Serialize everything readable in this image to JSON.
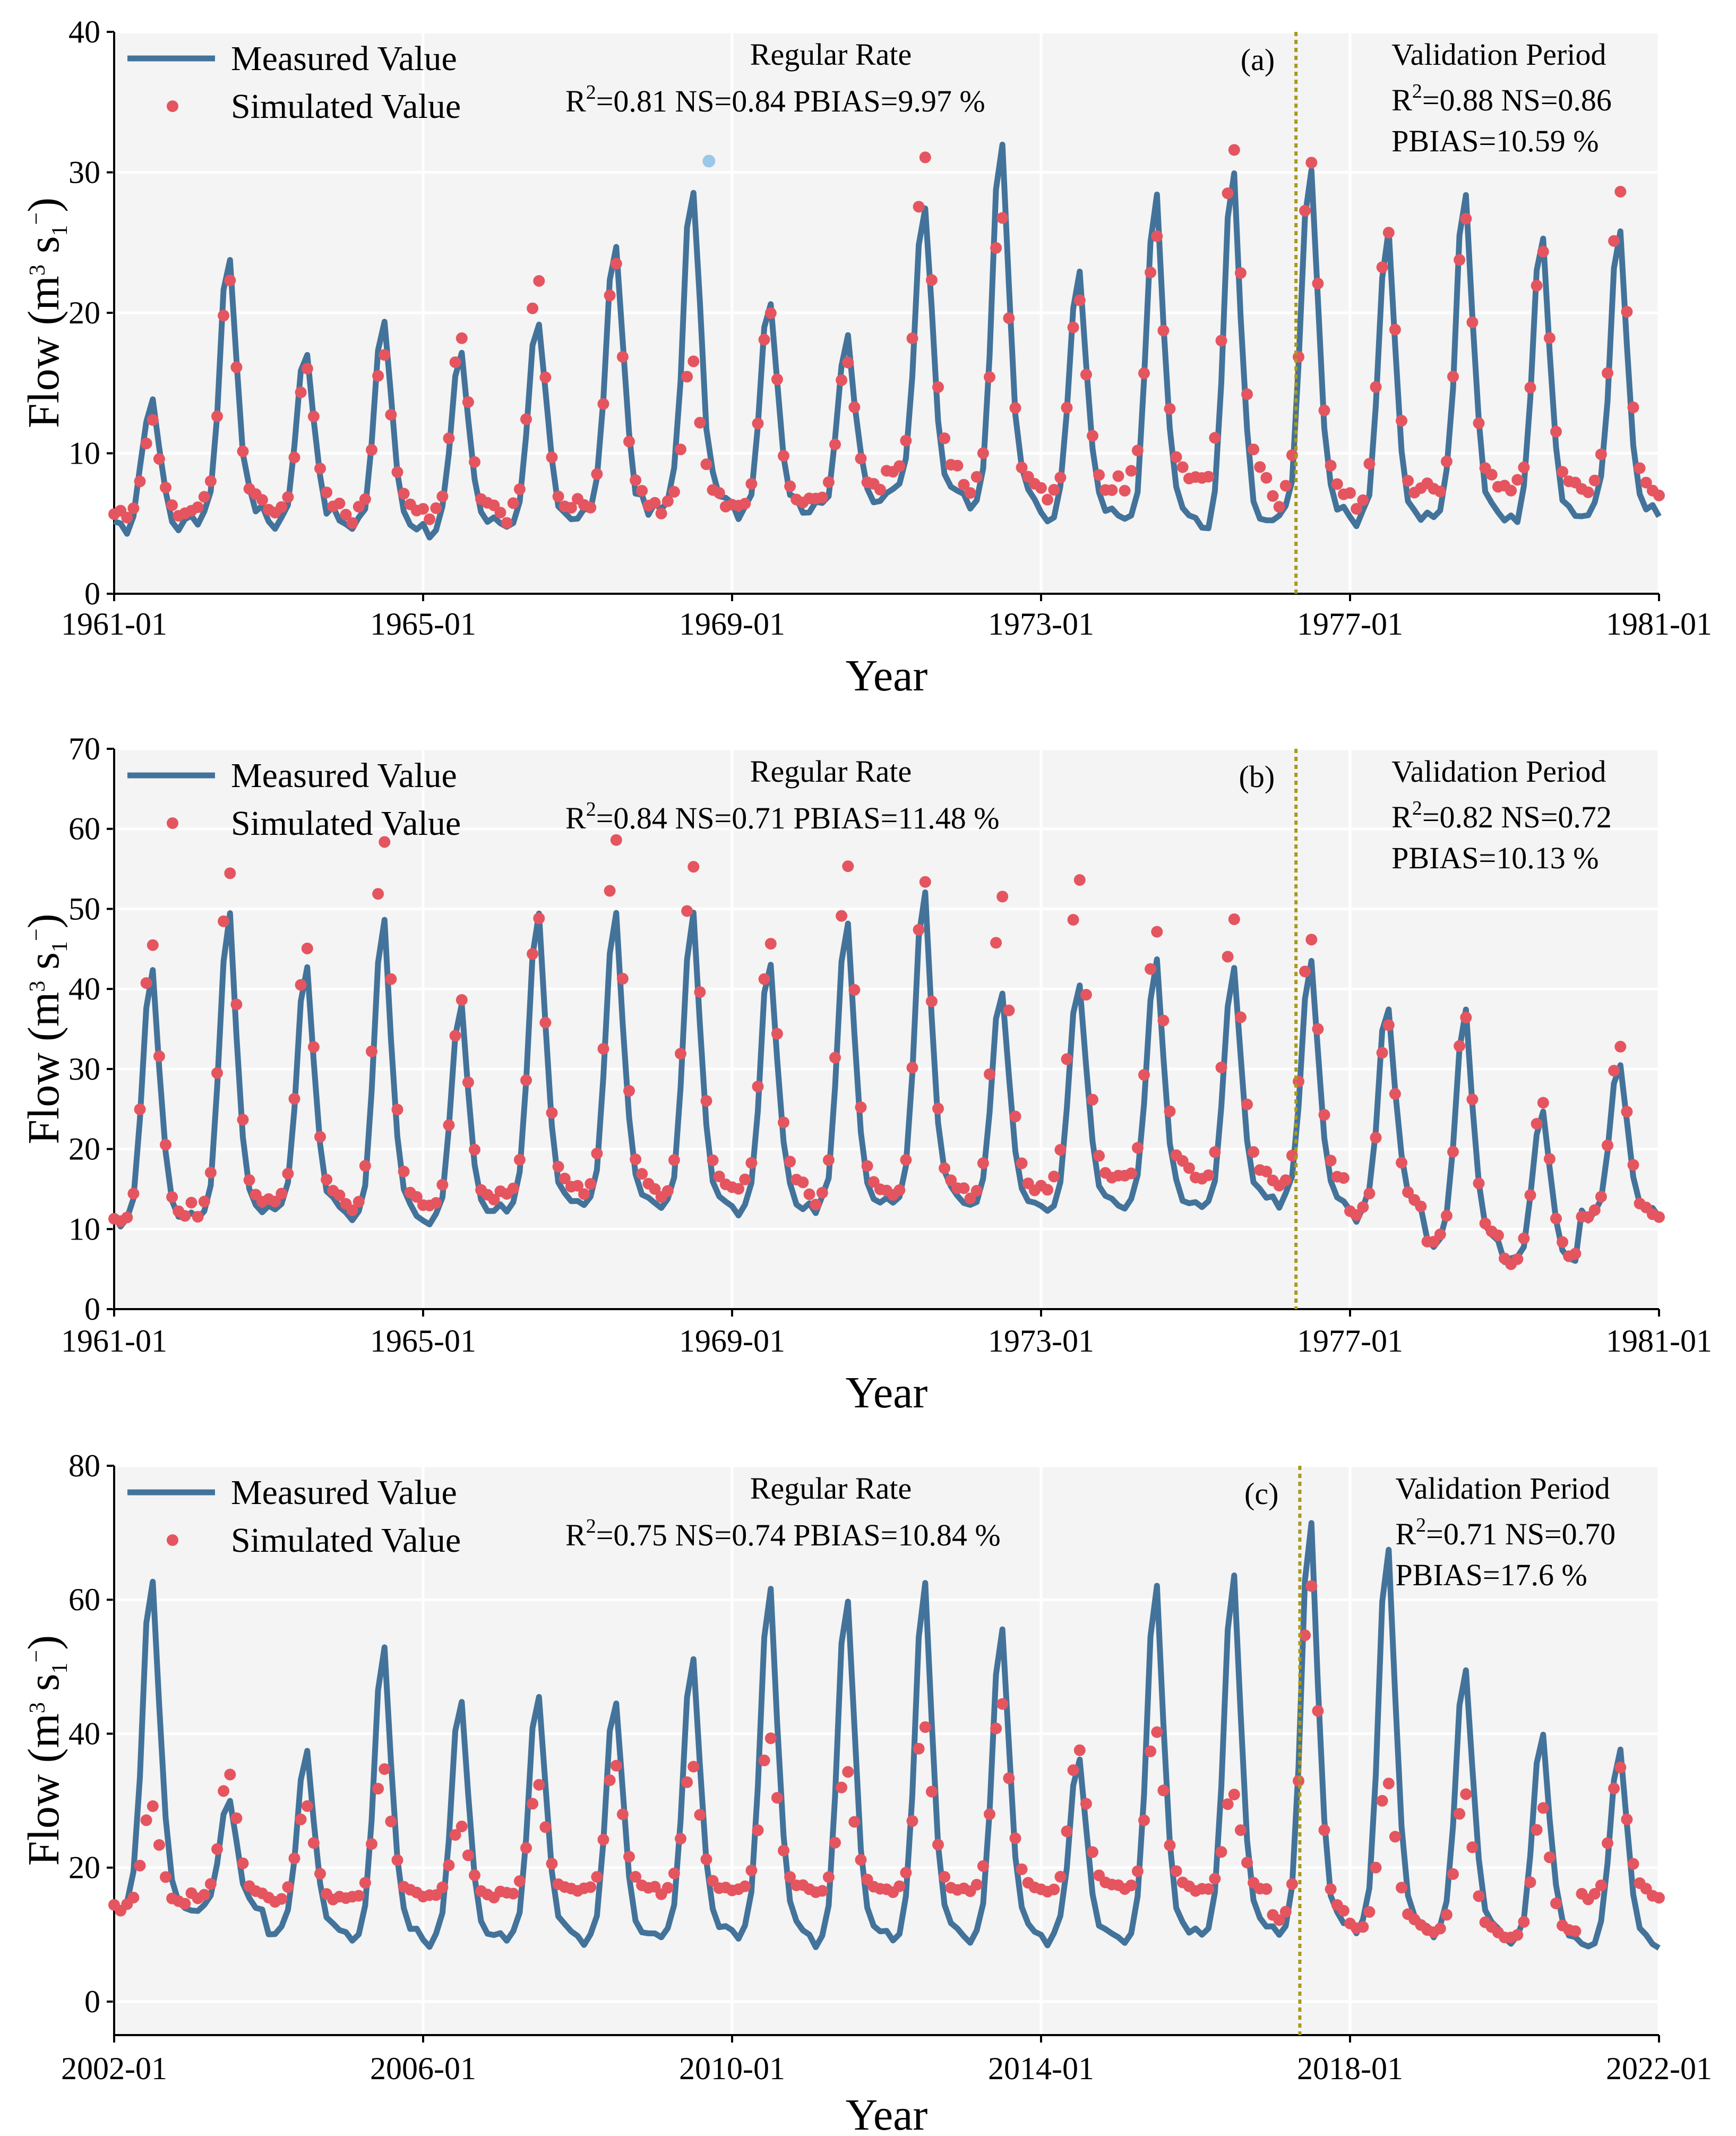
{
  "figure": {
    "colors": {
      "measured": "#43739a",
      "simulated": "#e5555f",
      "validation_line": "#a89a1b",
      "panel_bg": "#f4f4f4"
    },
    "legend": {
      "measured": "Measured Value",
      "simulated": "Simulated Value"
    },
    "xlabel": "Year"
  },
  "chart_data": [
    {
      "id": "a",
      "type": "line",
      "panel_label": "(a)",
      "xlabel": "Year",
      "ylabel": "Flow (m3 s1−)",
      "ylabel_parts": {
        "a": "Flow (m",
        "sup": "3",
        "b": " s",
        "sub": "1",
        "sup2": "−",
        "c": ")"
      },
      "ylim": [
        0,
        40
      ],
      "yticks": [
        0,
        10,
        20,
        30,
        40
      ],
      "yticks_text": [
        "0",
        "10",
        "20",
        "30",
        "40"
      ],
      "xlim": [
        1961.0,
        1981.0
      ],
      "xticks": [
        1961,
        1965,
        1969,
        1973,
        1977,
        1981
      ],
      "xticks_text": [
        "1961-01",
        "1965-01",
        "1969-01",
        "1973-01",
        "1977-01",
        "1981-01"
      ],
      "validation_x": 1976.3,
      "calib": {
        "title": "Regular Rate",
        "r2_label": "R",
        "r2_sup": "2",
        "r2_value": "=0.81",
        "ns": "NS=0.84",
        "pbias": "PBIAS=9.97 %"
      },
      "valid": {
        "title": "Validation Period",
        "r2_label": "R",
        "r2_sup": "2",
        "r2_value": "=0.88",
        "ns": "NS=0.86",
        "pbias": "PBIAS=10.59 %"
      },
      "series": [
        {
          "name": "Measured Value",
          "peaks": [
            14,
            24,
            17.5,
            19.5,
            16.7,
            19.5,
            25.2,
            29,
            21.2,
            18.5,
            28,
            32,
            23,
            28.3,
            29.8,
            30.6,
            25.5,
            28.5,
            25.3,
            25.5
          ],
          "base": [
            4.5,
            5.3,
            5.0,
            4.5,
            4.5,
            5.0,
            5.5,
            5.8,
            5.8,
            6.0,
            7.0,
            6.0,
            5.0,
            5.0,
            4.5,
            5.0,
            5.0,
            5.5,
            5.0,
            5.5
          ]
        },
        {
          "name": "Simulated Value",
          "peaks": [
            12,
            22.3,
            16.2,
            17.5,
            18.5,
            22.2,
            23.2,
            16.5,
            20,
            16.7,
            31,
            27.2,
            21,
            25.7,
            31.8,
            31,
            25.6,
            27,
            24.2,
            28.5
          ],
          "base": [
            5.5,
            6.0,
            5.8,
            5.5,
            5.8,
            5.5,
            6.0,
            6.2,
            6.5,
            7.0,
            8.5,
            7.5,
            6.8,
            7.8,
            8.0,
            6.5,
            6.5,
            7.0,
            7.2,
            7.0
          ]
        }
      ],
      "highlight_point": {
        "x": 1968.7,
        "y": 30.8
      }
    },
    {
      "id": "b",
      "type": "line",
      "panel_label": "(b)",
      "xlabel": "Year",
      "ylabel": "Flow (m3 s1−)",
      "ylabel_parts": {
        "a": "Flow (m",
        "sup": "3",
        "b": " s",
        "sub": "1",
        "sup2": "−",
        "c": ")"
      },
      "ylim": [
        0,
        70
      ],
      "yticks": [
        0,
        10,
        20,
        30,
        40,
        50,
        60,
        70
      ],
      "yticks_text": [
        "0",
        "10",
        "20",
        "30",
        "40",
        "50",
        "60",
        "70"
      ],
      "xlim": [
        1961.0,
        1981.0
      ],
      "xticks": [
        1961,
        1965,
        1969,
        1973,
        1977,
        1981
      ],
      "xticks_text": [
        "1961-01",
        "1965-01",
        "1969-01",
        "1973-01",
        "1977-01",
        "1981-01"
      ],
      "validation_x": 1976.3,
      "calib": {
        "title": "Regular Rate",
        "r2_label": "R",
        "r2_sup": "2",
        "r2_value": "=0.84",
        "ns": "NS=0.71",
        "pbias": "PBIAS=11.48 %"
      },
      "valid": {
        "title": "Validation Period",
        "r2_label": "R",
        "r2_sup": "2",
        "r2_value": "=0.82",
        "ns": "NS=0.72",
        "pbias": "PBIAS=10.13 %"
      },
      "series": [
        {
          "name": "Measured Value",
          "peaks": [
            42,
            49,
            43,
            48.5,
            38,
            49,
            50,
            49,
            43.5,
            48.5,
            51.5,
            40,
            41,
            43.5,
            42.5,
            43.5,
            38,
            37,
            24.5,
            31
          ],
          "base": [
            10.5,
            11.5,
            12.0,
            11.0,
            11.0,
            12.5,
            13.0,
            12.5,
            12.0,
            12.5,
            13.0,
            12.5,
            12.5,
            12.5,
            13.0,
            13.0,
            11.5,
            8.0,
            6.0,
            11.5
          ]
        },
        {
          "name": "Simulated Value",
          "peaks": [
            45.2,
            54.5,
            44.8,
            58.5,
            38.2,
            49.2,
            58.5,
            55.7,
            46,
            55.3,
            53,
            51.2,
            54,
            47.3,
            49,
            46.3,
            35.5,
            36.7,
            26,
            33
          ],
          "base": [
            10.5,
            12.0,
            13.0,
            12.5,
            12.5,
            14.5,
            14.5,
            14.0,
            15.0,
            13.5,
            14.0,
            14.0,
            15.0,
            16.5,
            16.0,
            15.5,
            12.0,
            8.0,
            6.0,
            11.5
          ]
        }
      ]
    },
    {
      "id": "c",
      "type": "line",
      "panel_label": "(c)",
      "xlabel": "Year",
      "ylabel": "Flow (m3 s1−)",
      "ylabel_parts": {
        "a": "Flow (m",
        "sup": "3",
        "b": " s",
        "sub": "1",
        "sup2": "−",
        "c": ")"
      },
      "ylim": [
        -5,
        80
      ],
      "yticks": [
        0,
        20,
        40,
        60,
        80
      ],
      "yticks_text": [
        "0",
        "20",
        "40",
        "60",
        "80"
      ],
      "xlim": [
        2002.0,
        2022.0
      ],
      "xticks": [
        2002,
        2006,
        2010,
        2014,
        2018,
        2022
      ],
      "xticks_text": [
        "2002-01",
        "2006-01",
        "2010-01",
        "2014-01",
        "2018-01",
        "2022-01"
      ],
      "validation_x": 2017.35,
      "calib": {
        "title": "Regular Rate",
        "r2_label": "R",
        "r2_sup": "2",
        "r2_value": "=0.75",
        "ns": "NS=0.74",
        "pbias": "PBIAS=10.84 %"
      },
      "valid": {
        "title": "Validation Period",
        "r2_label": "R",
        "r2_sup": "2",
        "r2_value": "=0.71",
        "ns": "NS=0.70",
        "pbias": "PBIAS=17.6 %"
      },
      "series": [
        {
          "name": "Measured Value",
          "peaks": [
            63,
            30,
            37.5,
            52.5,
            45,
            45.5,
            45,
            50.8,
            62,
            60.3,
            62,
            55.5,
            36,
            61.8,
            63.5,
            71,
            67.8,
            49.7,
            39.5,
            37.8
          ],
          "base": [
            13.0,
            13.5,
            10.0,
            9.0,
            8.5,
            9.5,
            9.0,
            9.5,
            9.5,
            8.5,
            9.0,
            9.0,
            9.0,
            9.0,
            9.5,
            10.0,
            10.0,
            10.0,
            8.5,
            8.0
          ]
        },
        {
          "name": "Simulated Value",
          "peaks": [
            29,
            34,
            29.5,
            34.5,
            26,
            32.2,
            35.3,
            35,
            39,
            34,
            41.3,
            44.3,
            37.2,
            40.3,
            31.3,
            62,
            32.7,
            31.2,
            28.5,
            34.5
          ],
          "base": [
            14.0,
            15.5,
            15.0,
            15.5,
            15.5,
            16.0,
            16.5,
            16.5,
            16.5,
            16.0,
            16.0,
            16.5,
            16.5,
            17.0,
            16.5,
            12.0,
            11.0,
            10.0,
            9.5,
            15.5
          ]
        }
      ]
    }
  ]
}
